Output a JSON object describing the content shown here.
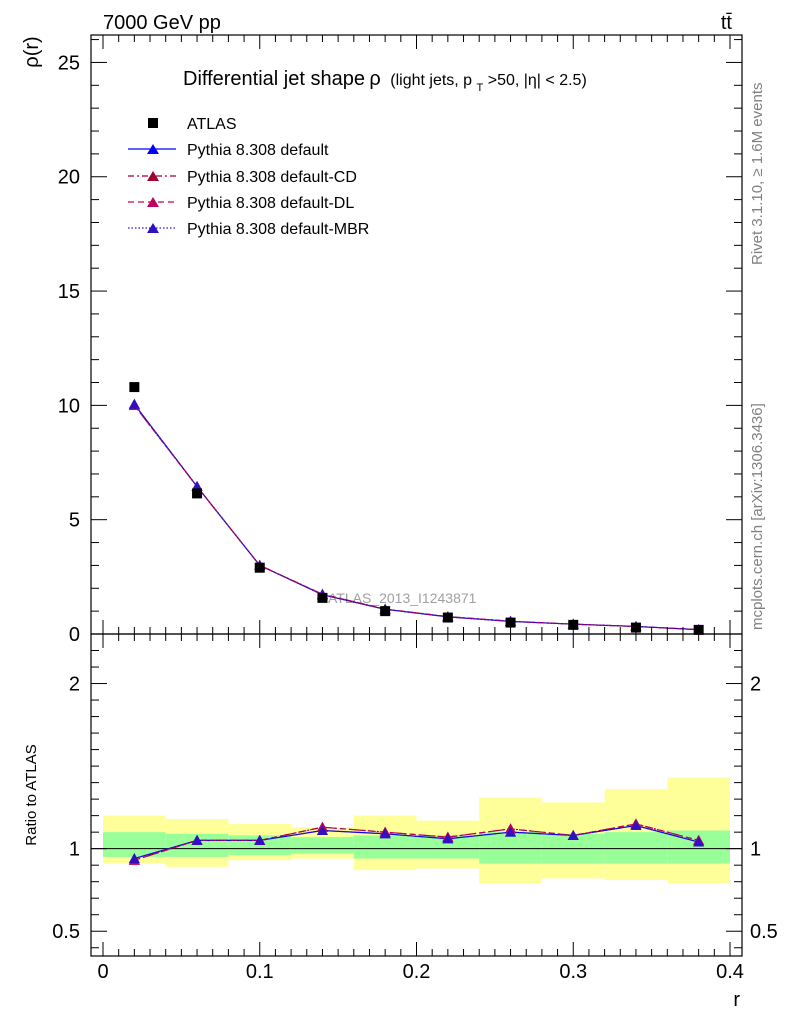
{
  "header": {
    "energy_label": "7000 GeV pp",
    "process_label": "tt̄"
  },
  "side_labels": {
    "rivet": "Rivet 3.1.10, ≥ 1.6M events",
    "mcplots": "mcplots.cern.ch [arXiv:1306.3436]"
  },
  "chart_data": {
    "type": "line",
    "title": "Differential jet shape",
    "title_symbol": "ρ",
    "title_cuts": "(light jets, p",
    "title_cuts_sub": "T",
    "title_cuts_rest": ">50, |η| < 2.5)",
    "watermark": "ATLAS_2013_I1243871",
    "xlabel": "r",
    "ylabel_main": "ρ(r)",
    "ylabel_ratio": "Ratio to ATLAS",
    "xlim": [
      0,
      0.4
    ],
    "ylim_main": [
      0,
      26.2
    ],
    "ylim_ratio": [
      0.35,
      2.3
    ],
    "x_ticks": [
      "0",
      "0.1",
      "0.2",
      "0.3",
      "0.4"
    ],
    "y_ticks_main": [
      "0",
      "5",
      "10",
      "15",
      "20",
      "25"
    ],
    "y_ticks_ratio": [
      "0.5",
      "1",
      "2"
    ],
    "x_values": [
      0.02,
      0.06,
      0.1,
      0.14,
      0.18,
      0.22,
      0.26,
      0.3,
      0.34,
      0.38
    ],
    "bins": [
      [
        0,
        0.04
      ],
      [
        0.04,
        0.08
      ],
      [
        0.08,
        0.12
      ],
      [
        0.12,
        0.16
      ],
      [
        0.16,
        0.2
      ],
      [
        0.2,
        0.24
      ],
      [
        0.24,
        0.28
      ],
      [
        0.28,
        0.32
      ],
      [
        0.32,
        0.36
      ],
      [
        0.36,
        0.4
      ]
    ],
    "data": {
      "name": "ATLAS",
      "values": [
        10.8,
        6.15,
        2.9,
        1.58,
        1.0,
        0.72,
        0.5,
        0.4,
        0.28,
        0.18
      ],
      "band_inner": [
        [
          0.95,
          1.1
        ],
        [
          0.95,
          1.09
        ],
        [
          0.96,
          1.08
        ],
        [
          0.97,
          1.07
        ],
        [
          0.94,
          1.08
        ],
        [
          0.94,
          1.08
        ],
        [
          0.91,
          1.1
        ],
        [
          0.91,
          1.09
        ],
        [
          0.91,
          1.1
        ],
        [
          0.91,
          1.11
        ]
      ],
      "band_outer": [
        [
          0.91,
          1.2
        ],
        [
          0.89,
          1.18
        ],
        [
          0.93,
          1.15
        ],
        [
          0.94,
          1.13
        ],
        [
          0.87,
          1.2
        ],
        [
          0.88,
          1.17
        ],
        [
          0.79,
          1.31
        ],
        [
          0.82,
          1.28
        ],
        [
          0.81,
          1.36
        ],
        [
          0.79,
          1.43
        ]
      ]
    },
    "series": [
      {
        "name": "Pythia 8.308 default",
        "color": "#0000ff",
        "dash": "solid",
        "values": [
          10.05,
          6.45,
          3.0,
          1.72,
          1.08,
          0.75,
          0.55,
          0.43,
          0.33,
          0.19
        ],
        "ratio": [
          0.94,
          1.05,
          1.05,
          1.11,
          1.09,
          1.06,
          1.1,
          1.08,
          1.14,
          1.04
        ]
      },
      {
        "name": "Pythia 8.308 default-CD",
        "color": "#a00030",
        "dash": "dashdot",
        "values": [
          10.0,
          6.45,
          3.0,
          1.74,
          1.09,
          0.76,
          0.56,
          0.43,
          0.33,
          0.19
        ],
        "ratio": [
          0.93,
          1.05,
          1.05,
          1.13,
          1.1,
          1.07,
          1.12,
          1.08,
          1.15,
          1.05
        ]
      },
      {
        "name": "Pythia 8.308 default-DL",
        "color": "#c00060",
        "dash": "dashed",
        "values": [
          10.0,
          6.45,
          3.0,
          1.74,
          1.09,
          0.76,
          0.56,
          0.43,
          0.33,
          0.19
        ],
        "ratio": [
          0.93,
          1.05,
          1.05,
          1.13,
          1.1,
          1.07,
          1.12,
          1.08,
          1.15,
          1.05
        ]
      },
      {
        "name": "Pythia 8.308 default-MBR",
        "color": "#3010c0",
        "dash": "dotted",
        "values": [
          10.05,
          6.45,
          3.0,
          1.72,
          1.08,
          0.75,
          0.55,
          0.43,
          0.33,
          0.19
        ],
        "ratio": [
          0.94,
          1.05,
          1.05,
          1.11,
          1.09,
          1.06,
          1.1,
          1.08,
          1.14,
          1.04
        ]
      }
    ],
    "colors": {
      "band_inner": "#99ff99",
      "band_outer": "#ffff99",
      "data_marker": "#000000"
    },
    "legend_position": "top-left",
    "grid": false
  }
}
